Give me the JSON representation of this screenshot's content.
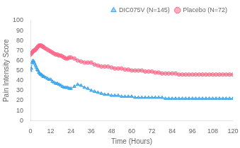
{
  "chart_data": {
    "type": "line",
    "xlabel": "Time (Hours)",
    "ylabel": "Pain Intensity Score",
    "xlim": [
      0,
      120
    ],
    "ylim": [
      0,
      100
    ],
    "xticks": [
      0,
      12,
      24,
      36,
      48,
      60,
      72,
      84,
      96,
      108,
      120
    ],
    "yticks": [
      0,
      10,
      20,
      30,
      40,
      50,
      60,
      70,
      80,
      90,
      100
    ],
    "grid": false,
    "legend": "upper right",
    "x": [
      0,
      0.5,
      1,
      1.5,
      2,
      2.5,
      3,
      3.5,
      4,
      4.5,
      5,
      5.5,
      6,
      6.5,
      7,
      7.5,
      8,
      9,
      10,
      11,
      12,
      13,
      14,
      15,
      16,
      17,
      18,
      19,
      20,
      21,
      22,
      23,
      24,
      26,
      28,
      30,
      32,
      34,
      36,
      38,
      40,
      42,
      44,
      46,
      48,
      50,
      52,
      54,
      56,
      58,
      60,
      62,
      64,
      66,
      68,
      70,
      72,
      74,
      76,
      78,
      80,
      82,
      84,
      86,
      88,
      90,
      92,
      94,
      96,
      98,
      100,
      102,
      104,
      106,
      108,
      110,
      112,
      114,
      116,
      118,
      120
    ],
    "series": [
      {
        "name": "DIC075V (N=145)",
        "marker": "triangle",
        "values": [
          50,
          52,
          58,
          60,
          59,
          57,
          55,
          53,
          51,
          50,
          48,
          47,
          46,
          46,
          45,
          44,
          44,
          43,
          42,
          41,
          41,
          39,
          38,
          37,
          37,
          36,
          35,
          34,
          33,
          33,
          33,
          32,
          32,
          34,
          36,
          35,
          33,
          32,
          30,
          29,
          28,
          27,
          26,
          26,
          25,
          25,
          25,
          24,
          24,
          24,
          24,
          23,
          23,
          23,
          23,
          23,
          23,
          23,
          23,
          23,
          22,
          22,
          22,
          22,
          22,
          22,
          22,
          22,
          22,
          22,
          22,
          22,
          22,
          22,
          22,
          22,
          22,
          22,
          22,
          22,
          22
        ]
      },
      {
        "name": "Placebo (N=72)",
        "marker": "circle",
        "values": [
          66,
          67,
          68,
          69,
          70,
          70,
          71,
          72,
          73,
          74,
          75,
          75,
          75,
          75,
          74,
          74,
          73,
          72,
          71,
          70,
          69,
          68,
          67,
          66,
          66,
          65,
          65,
          64,
          63,
          62,
          62,
          63,
          63,
          62,
          60,
          59,
          58,
          58,
          58,
          56,
          55,
          54,
          54,
          54,
          53,
          52,
          52,
          52,
          51,
          51,
          50,
          50,
          50,
          50,
          49,
          49,
          49,
          48,
          48,
          47,
          47,
          47,
          47,
          47,
          46,
          46,
          46,
          46,
          46,
          46,
          46,
          46,
          46,
          46,
          46,
          46,
          46,
          46,
          46,
          46,
          46
        ]
      }
    ]
  }
}
